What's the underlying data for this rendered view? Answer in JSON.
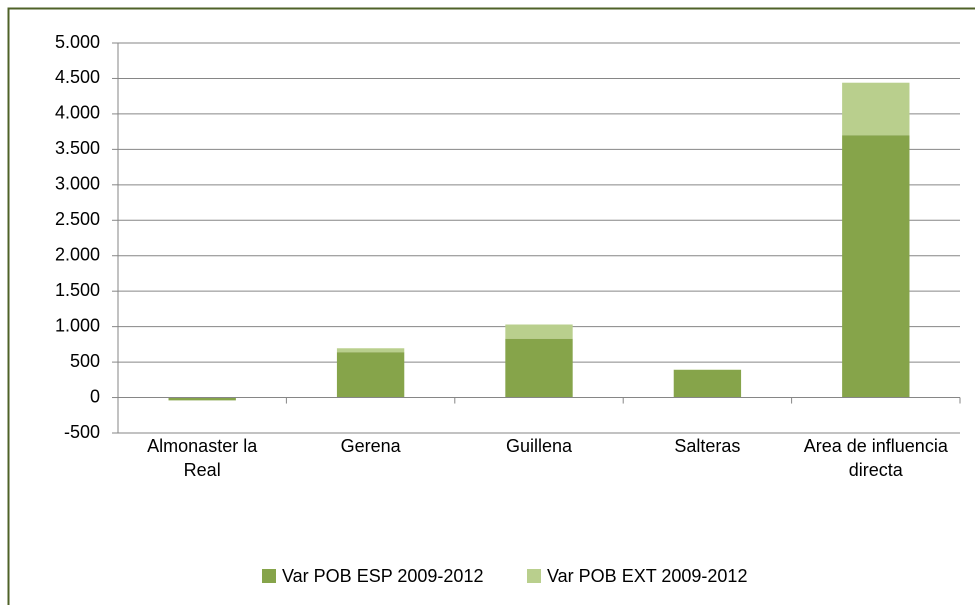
{
  "chart_data": {
    "type": "stacked_bar",
    "categories": [
      "Almonaster la Real",
      "Gerena",
      "Guillena",
      "Salteras",
      "Area de influencia directa"
    ],
    "series": [
      {
        "name": "Var POB ESP 2009-2012",
        "color": "#86a44a",
        "values": [
          -40,
          640,
          830,
          390,
          3700
        ]
      },
      {
        "name": "Var POB EXT 2009-2012",
        "color": "#b9cf8d",
        "values": [
          0,
          55,
          200,
          5,
          740
        ]
      }
    ],
    "ylim": [
      -500,
      5000
    ],
    "yticks": [
      {
        "value": -500,
        "label": "-500"
      },
      0,
      500,
      {
        "value": 1000,
        "label": "1.000"
      },
      {
        "value": 1500,
        "label": "1.500"
      },
      {
        "value": 2000,
        "label": "2.000"
      },
      {
        "value": 2500,
        "label": "2.500"
      },
      {
        "value": 3000,
        "label": "3.000"
      },
      {
        "value": 3500,
        "label": "3.500"
      },
      {
        "value": 4000,
        "label": "4.000"
      },
      {
        "value": 4500,
        "label": "4.500"
      },
      {
        "value": 5000,
        "label": "5.000"
      }
    ],
    "grid": true,
    "legend": "bottom"
  }
}
